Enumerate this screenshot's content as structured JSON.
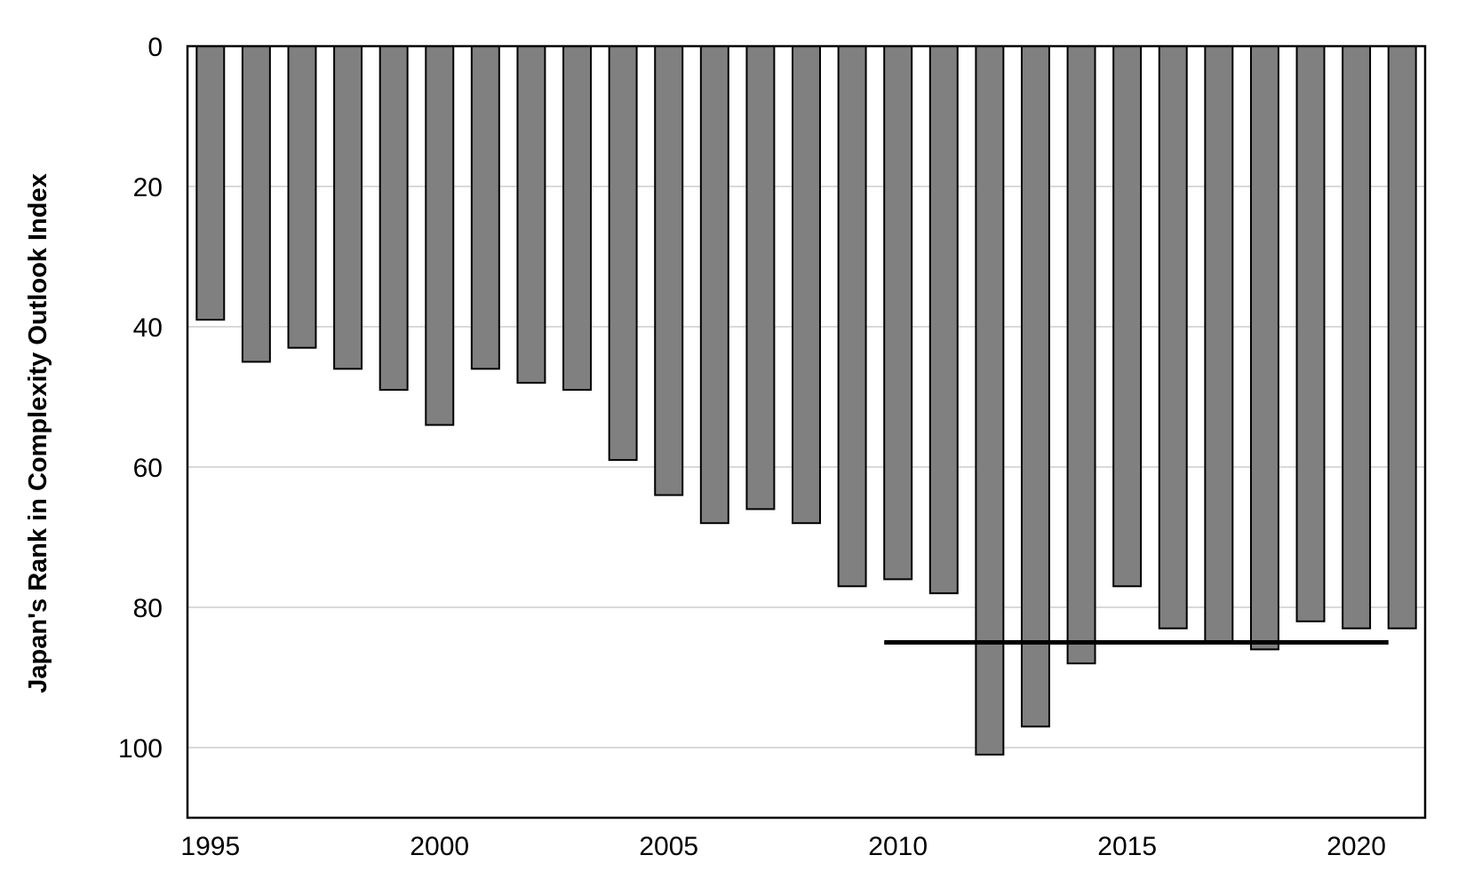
{
  "chart_data": {
    "type": "bar",
    "orientation": "vertical",
    "y_axis_inverted": true,
    "title": "",
    "xlabel": "",
    "ylabel": "Japan's Rank in Complexity Outlook Index",
    "ylim": [
      0,
      110
    ],
    "yticks": [
      0,
      20,
      40,
      60,
      80,
      100
    ],
    "xticks": [
      1995,
      2000,
      2005,
      2010,
      2015,
      2020
    ],
    "grid": "horizontal",
    "categories": [
      1995,
      1996,
      1997,
      1998,
      1999,
      2000,
      2001,
      2002,
      2003,
      2004,
      2005,
      2006,
      2007,
      2008,
      2009,
      2010,
      2011,
      2012,
      2013,
      2014,
      2015,
      2016,
      2017,
      2018,
      2019,
      2020,
      2021
    ],
    "values": [
      39,
      45,
      43,
      46,
      49,
      54,
      46,
      48,
      49,
      59,
      64,
      68,
      66,
      68,
      77,
      76,
      78,
      101,
      97,
      88,
      77,
      83,
      85,
      86,
      82,
      83,
      83
    ],
    "reference_line": {
      "y": 85,
      "x_start": 2010,
      "x_end": 2021
    },
    "colors": {
      "bar": "#808080",
      "bar_edge": "#000000",
      "grid": "#d9d9d9",
      "reference_line": "#000000"
    }
  }
}
